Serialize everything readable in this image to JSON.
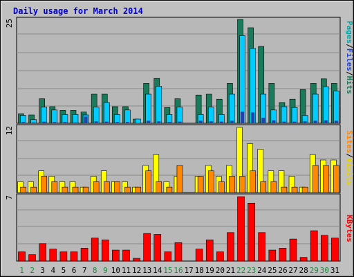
{
  "chart_data": [
    {
      "type": "bar",
      "title": "Daily usage for March 2014",
      "categories": [
        "1",
        "2",
        "3",
        "4",
        "5",
        "6",
        "7",
        "8",
        "9",
        "10",
        "11",
        "12",
        "13",
        "14",
        "15",
        "16",
        "17",
        "18",
        "19",
        "20",
        "21",
        "22",
        "23",
        "24",
        "25",
        "26",
        "27",
        "28",
        "29",
        "30",
        "31"
      ],
      "weekend_days": [
        "1",
        "2",
        "8",
        "9",
        "15",
        "16",
        "22",
        "23",
        "29",
        "30"
      ],
      "ylim": [
        0,
        25
      ],
      "y_tick_label": "25",
      "series": [
        {
          "name": "Hits",
          "color": "#1a7a5c",
          "values": [
            2.3,
            2.0,
            5.9,
            4.0,
            3.1,
            3.1,
            2.7,
            7.0,
            7.0,
            4.0,
            4.0,
            1.0,
            9.6,
            10.8,
            3.8,
            5.9,
            0,
            6.8,
            7.0,
            5.8,
            9.6,
            25.0,
            23.0,
            18.5,
            9.6,
            5.0,
            5.8,
            8.1,
            9.6,
            10.7,
            9.6
          ]
        },
        {
          "name": "Files",
          "color": "#00ccff",
          "values": [
            1.9,
            0.9,
            3.9,
            3.2,
            2.1,
            2.1,
            2.0,
            3.9,
            5.0,
            2.1,
            3.2,
            1.0,
            7.0,
            8.9,
            2.1,
            3.9,
            0,
            2.1,
            3.9,
            2.1,
            7.0,
            21.1,
            18.0,
            7.0,
            3.2,
            4.0,
            3.8,
            1.9,
            7.0,
            8.8,
            7.8
          ]
        },
        {
          "name": "Pages",
          "color": "#2244aa",
          "values": [
            0.3,
            0.2,
            0.4,
            0.3,
            0.3,
            0.2,
            1.6,
            0.5,
            0.4,
            0.3,
            0.3,
            0.1,
            0.6,
            0.5,
            0.3,
            0.4,
            0,
            0.6,
            0.5,
            0.4,
            0.6,
            2.8,
            2.6,
            1.3,
            0.7,
            0.4,
            0.4,
            0.5,
            0.6,
            0.7,
            0.6
          ]
        }
      ],
      "legend": [
        "Pages",
        "/",
        "Files",
        "/",
        "Hits"
      ],
      "legend_colors": [
        "#00aaaa",
        "#000000",
        "#2244dd",
        "#000000",
        "#1a7a5c"
      ]
    },
    {
      "type": "bar",
      "ylim": [
        0,
        12
      ],
      "y_tick_label": "12",
      "series": [
        {
          "name": "Visits",
          "color": "#ffff00",
          "values": [
            2.0,
            2.0,
            4.0,
            3.0,
            2.0,
            2.0,
            1.0,
            3.0,
            4.0,
            2.0,
            2.0,
            1.0,
            5.0,
            7.0,
            2.0,
            3.0,
            0,
            3.0,
            5.0,
            3.0,
            5.0,
            12.0,
            9.0,
            8.0,
            4.0,
            4.0,
            3.0,
            1.0,
            7.0,
            6.0,
            6.0
          ]
        },
        {
          "name": "Sites",
          "color": "#ff8800",
          "values": [
            1.0,
            1.0,
            3.0,
            2.0,
            1.0,
            1.0,
            1.0,
            2.0,
            2.0,
            2.0,
            1.0,
            1.0,
            4.0,
            2.0,
            1.0,
            5.0,
            0,
            3.0,
            4.0,
            2.0,
            3.0,
            3.0,
            4.0,
            2.0,
            2.0,
            1.0,
            1.0,
            1.0,
            5.0,
            5.0,
            5.0
          ]
        }
      ],
      "legend": [
        "Sites",
        "/",
        "Visits"
      ],
      "legend_colors": [
        "#ff8800",
        "#000000",
        "#e8d000"
      ]
    },
    {
      "type": "bar",
      "ylim": [
        0,
        7
      ],
      "y_tick_label": "7",
      "series": [
        {
          "name": "KBytes",
          "color": "#ff0000",
          "values": [
            1.0,
            0.7,
            1.9,
            1.3,
            1.0,
            1.0,
            1.4,
            2.5,
            2.3,
            1.2,
            1.2,
            0.3,
            3.0,
            2.9,
            1.0,
            2.0,
            0,
            1.3,
            2.3,
            1.0,
            3.1,
            7.0,
            6.3,
            3.1,
            1.2,
            1.4,
            2.4,
            0.4,
            3.3,
            2.8,
            2.5
          ]
        }
      ],
      "legend": [
        "KBytes"
      ],
      "legend_colors": [
        "#ff0000"
      ]
    }
  ]
}
